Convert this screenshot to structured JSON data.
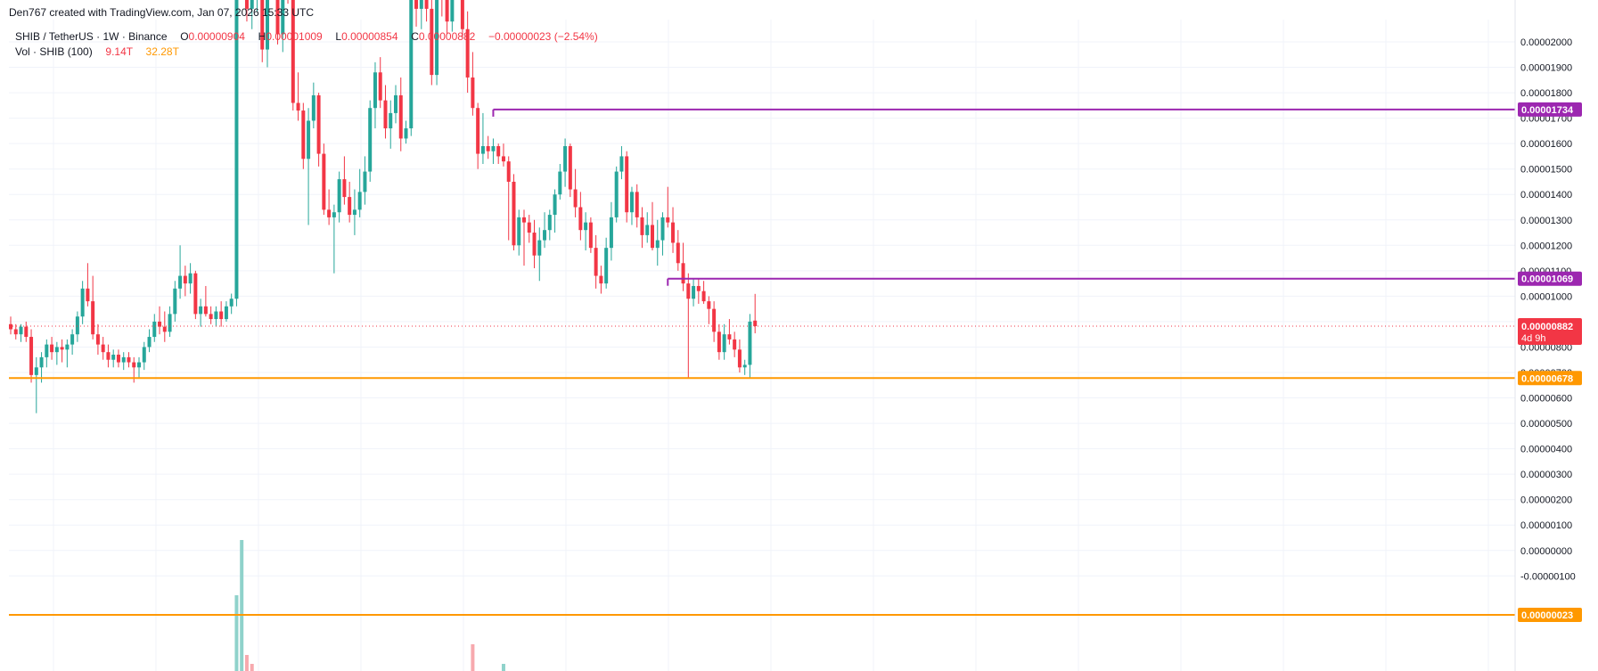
{
  "header": {
    "credit": "Den767 created with TradingView.com, Jan 07, 2026 15:33 UTC",
    "symbol_line": "SHIB / TetherUS · 1W · Binance",
    "o_label": "O",
    "o_value": "0.00000904",
    "h_label": "H",
    "h_value": "0.00001009",
    "l_label": "L",
    "l_value": "0.00000854",
    "c_label": "C",
    "c_value": "0.00000882",
    "change": "−0.00000023 (−2.54%)",
    "vol_label": "Vol · SHIB (100)",
    "vol_value_1": "9.14T",
    "vol_value_2": "32.28T"
  },
  "colors": {
    "up": "#26a69a",
    "down": "#f23645",
    "up_vol": "#8fd2cb",
    "down_vol": "#f7a9ae",
    "level_purple": "#9c27b0",
    "level_orange": "#ff9800",
    "grid": "#f0f3fa"
  },
  "chart_data": {
    "type": "candlestick",
    "title": "SHIB / TetherUS · 1W · Binance",
    "y_axis_labels": [
      "0.00002000",
      "0.00001900",
      "0.00001800",
      "0.00001700",
      "0.00001600",
      "0.00001500",
      "0.00001400",
      "0.00001300",
      "0.00001200",
      "0.00001100",
      "0.00001000",
      "0.00000900",
      "0.00000800",
      "0.00000700",
      "0.00000600",
      "0.00000500",
      "0.00000400",
      "0.00000300",
      "0.00000200",
      "0.00000100",
      "0.00000000",
      "-0.00000100"
    ],
    "y_axis_values": [
      2e-05,
      1.9e-05,
      1.8e-05,
      1.7e-05,
      1.6e-05,
      1.5e-05,
      1.4e-05,
      1.3e-05,
      1.2e-05,
      1.1e-05,
      1e-05,
      9e-06,
      8e-06,
      7e-06,
      6e-06,
      5e-06,
      4e-06,
      3e-06,
      2e-06,
      1e-06,
      0,
      -1e-06
    ],
    "ylim": [
      -1.2e-06,
      2.14e-05
    ],
    "grid": true,
    "levels": [
      {
        "label": "0.00001734",
        "value": 1.734e-05,
        "color": "purple",
        "start_index": 94
      },
      {
        "label": "0.00001069",
        "value": 1.069e-05,
        "color": "purple",
        "start_index": 128
      },
      {
        "label": "0.00000678",
        "value": 6.78e-06,
        "color": "orange",
        "start_index": 0
      },
      {
        "label": "0.00000023",
        "value": 2.3e-07,
        "color": "orange",
        "start_index": 0
      }
    ],
    "last_price": {
      "label": "0.00000882",
      "countdown": "4d 9h",
      "value": 8.82e-06
    },
    "candles_ohlc": [
      [
        8.9,
        9.2,
        8.5,
        8.7
      ],
      [
        8.7,
        8.9,
        8.3,
        8.5
      ],
      [
        8.5,
        8.9,
        8.2,
        8.8
      ],
      [
        8.8,
        9.0,
        8.2,
        8.4
      ],
      [
        8.4,
        8.7,
        6.6,
        6.9
      ],
      [
        6.9,
        7.6,
        5.4,
        7.2
      ],
      [
        7.2,
        7.8,
        6.6,
        7.6
      ],
      [
        7.6,
        8.3,
        7.2,
        8.1
      ],
      [
        8.1,
        8.4,
        7.5,
        7.8
      ],
      [
        7.8,
        8.2,
        7.3,
        8.0
      ],
      [
        8.0,
        8.3,
        7.4,
        7.9
      ],
      [
        7.9,
        8.3,
        7.2,
        8.1
      ],
      [
        8.1,
        8.7,
        7.7,
        8.5
      ],
      [
        8.5,
        9.4,
        8.2,
        9.2
      ],
      [
        9.2,
        10.6,
        8.9,
        10.3
      ],
      [
        10.3,
        11.3,
        9.6,
        9.8
      ],
      [
        9.8,
        10.8,
        8.3,
        8.5
      ],
      [
        8.5,
        8.9,
        7.7,
        8.1
      ],
      [
        8.1,
        8.4,
        7.5,
        7.8
      ],
      [
        7.8,
        8.1,
        7.2,
        7.5
      ],
      [
        7.5,
        7.9,
        7.2,
        7.7
      ],
      [
        7.7,
        7.9,
        7.2,
        7.4
      ],
      [
        7.4,
        7.8,
        7.1,
        7.6
      ],
      [
        7.6,
        7.8,
        7.2,
        7.4
      ],
      [
        7.4,
        7.6,
        6.6,
        7.2
      ],
      [
        7.2,
        7.6,
        6.8,
        7.4
      ],
      [
        7.4,
        8.2,
        7.1,
        8.0
      ],
      [
        8.0,
        8.7,
        7.8,
        8.4
      ],
      [
        8.4,
        9.3,
        8.2,
        9.0
      ],
      [
        9.0,
        9.6,
        8.5,
        8.8
      ],
      [
        8.8,
        9.4,
        8.2,
        8.6
      ],
      [
        8.6,
        9.6,
        8.4,
        9.3
      ],
      [
        9.3,
        10.6,
        9.0,
        10.3
      ],
      [
        10.3,
        12.0,
        9.9,
        10.8
      ],
      [
        10.8,
        11.2,
        10.0,
        10.5
      ],
      [
        10.5,
        11.3,
        10.1,
        10.9
      ],
      [
        10.9,
        11.0,
        9.1,
        9.3
      ],
      [
        9.3,
        9.9,
        8.8,
        9.6
      ],
      [
        9.6,
        10.4,
        9.2,
        9.3
      ],
      [
        9.3,
        9.6,
        8.9,
        9.1
      ],
      [
        9.1,
        9.6,
        8.8,
        9.4
      ],
      [
        9.4,
        9.8,
        8.8,
        9.1
      ],
      [
        9.1,
        9.8,
        9.0,
        9.6
      ],
      [
        9.6,
        10.1,
        9.3,
        9.9
      ],
      [
        9.9,
        26.0,
        9.6,
        25.0
      ],
      [
        25.0,
        27.0,
        22.0,
        24.5
      ],
      [
        24.5,
        25.6,
        20.8,
        21.3
      ],
      [
        21.3,
        23.0,
        20.5,
        22.1
      ],
      [
        22.1,
        23.5,
        21.2,
        22.7
      ],
      [
        22.7,
        23.2,
        19.2,
        19.7
      ],
      [
        19.7,
        23.8,
        19.0,
        23.3
      ],
      [
        23.3,
        25.0,
        22.5,
        24.4
      ],
      [
        24.4,
        24.6,
        19.9,
        20.3
      ],
      [
        20.3,
        23.6,
        19.6,
        23.1
      ],
      [
        23.1,
        25.6,
        21.5,
        22.0
      ],
      [
        22.0,
        22.6,
        17.3,
        17.6
      ],
      [
        17.6,
        18.8,
        16.9,
        17.3
      ],
      [
        17.3,
        17.6,
        15.0,
        15.4
      ],
      [
        15.4,
        17.4,
        12.8,
        16.9
      ],
      [
        16.9,
        18.4,
        16.6,
        17.9
      ],
      [
        17.9,
        18.0,
        15.1,
        15.6
      ],
      [
        15.6,
        16.0,
        13.2,
        13.4
      ],
      [
        13.4,
        14.2,
        12.8,
        13.1
      ],
      [
        13.1,
        13.6,
        10.9,
        13.3
      ],
      [
        13.3,
        14.9,
        12.9,
        14.6
      ],
      [
        14.6,
        15.5,
        13.6,
        13.9
      ],
      [
        13.9,
        14.5,
        12.9,
        13.2
      ],
      [
        13.2,
        14.2,
        12.4,
        13.4
      ],
      [
        13.4,
        15.0,
        13.1,
        14.1
      ],
      [
        14.1,
        15.5,
        13.6,
        14.9
      ],
      [
        14.9,
        17.7,
        14.5,
        17.4
      ],
      [
        17.4,
        19.2,
        16.6,
        18.8
      ],
      [
        18.8,
        19.4,
        17.4,
        17.7
      ],
      [
        17.7,
        18.3,
        16.2,
        16.6
      ],
      [
        16.6,
        17.7,
        15.8,
        17.2
      ],
      [
        17.2,
        18.3,
        16.8,
        17.9
      ],
      [
        17.9,
        18.6,
        15.7,
        16.2
      ],
      [
        16.2,
        16.9,
        16.0,
        16.6
      ],
      [
        16.6,
        22.5,
        16.3,
        22.0
      ],
      [
        22.0,
        23.0,
        20.6,
        21.3
      ],
      [
        21.3,
        23.7,
        20.5,
        23.2
      ],
      [
        23.2,
        23.8,
        20.8,
        21.3
      ],
      [
        21.3,
        22.4,
        18.3,
        18.7
      ],
      [
        18.7,
        22.7,
        18.3,
        22.3
      ],
      [
        22.3,
        23.5,
        21.0,
        21.7
      ],
      [
        21.7,
        22.5,
        20.3,
        20.8
      ],
      [
        20.8,
        23.0,
        20.4,
        22.5
      ],
      [
        22.5,
        23.1,
        21.7,
        22.1
      ],
      [
        22.1,
        22.6,
        20.2,
        20.5
      ],
      [
        20.5,
        21.2,
        18.0,
        18.6
      ],
      [
        18.6,
        19.6,
        17.1,
        17.4
      ],
      [
        17.4,
        17.6,
        15.0,
        15.6
      ],
      [
        15.6,
        17.2,
        15.2,
        15.9
      ],
      [
        15.9,
        16.3,
        15.4,
        15.7
      ],
      [
        15.7,
        16.2,
        15.2,
        15.9
      ],
      [
        15.9,
        16.0,
        15.2,
        15.5
      ],
      [
        15.5,
        16.0,
        15.1,
        15.3
      ],
      [
        15.3,
        15.5,
        12.2,
        14.5
      ],
      [
        14.5,
        14.8,
        11.8,
        12.0
      ],
      [
        12.0,
        13.4,
        11.6,
        13.1
      ],
      [
        13.1,
        13.4,
        11.2,
        12.9
      ],
      [
        12.9,
        13.2,
        12.1,
        12.5
      ],
      [
        12.5,
        13.0,
        11.1,
        11.6
      ],
      [
        11.6,
        12.7,
        10.6,
        12.2
      ],
      [
        12.2,
        13.3,
        11.9,
        12.6
      ],
      [
        12.6,
        13.4,
        12.2,
        13.2
      ],
      [
        13.2,
        14.2,
        12.5,
        14.0
      ],
      [
        14.0,
        15.2,
        13.8,
        14.9
      ],
      [
        14.9,
        16.2,
        14.3,
        15.9
      ],
      [
        15.9,
        16.0,
        13.9,
        14.2
      ],
      [
        14.2,
        15.0,
        13.1,
        13.5
      ],
      [
        13.5,
        14.1,
        12.2,
        12.6
      ],
      [
        12.6,
        13.3,
        11.8,
        12.9
      ],
      [
        12.9,
        13.1,
        11.7,
        11.9
      ],
      [
        11.9,
        12.4,
        10.3,
        10.8
      ],
      [
        10.8,
        11.2,
        10.1,
        10.5
      ],
      [
        10.5,
        12.3,
        10.3,
        11.9
      ],
      [
        11.9,
        13.7,
        11.4,
        13.1
      ],
      [
        13.1,
        15.1,
        12.9,
        14.9
      ],
      [
        14.9,
        15.9,
        14.6,
        15.5
      ],
      [
        15.5,
        15.7,
        12.9,
        13.3
      ],
      [
        13.3,
        14.3,
        12.8,
        14.1
      ],
      [
        14.1,
        14.4,
        12.7,
        13.1
      ],
      [
        13.1,
        13.5,
        11.9,
        12.4
      ],
      [
        12.4,
        13.3,
        12.1,
        12.8
      ],
      [
        12.8,
        13.7,
        11.8,
        11.9
      ],
      [
        11.9,
        13.0,
        11.2,
        12.2
      ],
      [
        12.2,
        13.3,
        11.6,
        13.1
      ],
      [
        13.1,
        14.3,
        12.7,
        12.9
      ],
      [
        12.9,
        13.5,
        11.7,
        12.1
      ],
      [
        12.1,
        12.6,
        11.0,
        11.3
      ],
      [
        11.3,
        12.1,
        10.2,
        10.5
      ],
      [
        10.5,
        10.9,
        6.8,
        9.9
      ],
      [
        9.9,
        10.7,
        9.6,
        10.4
      ],
      [
        10.4,
        10.7,
        9.7,
        10.2
      ],
      [
        10.2,
        10.6,
        9.7,
        9.8
      ],
      [
        9.8,
        10.0,
        8.9,
        9.5
      ],
      [
        9.5,
        9.8,
        8.2,
        8.6
      ],
      [
        8.6,
        8.9,
        7.5,
        7.8
      ],
      [
        7.8,
        8.9,
        7.5,
        8.5
      ],
      [
        8.5,
        9.1,
        8.1,
        8.3
      ],
      [
        8.3,
        8.6,
        7.6,
        7.9
      ],
      [
        7.9,
        8.3,
        7.0,
        7.2
      ],
      [
        7.2,
        7.5,
        6.9,
        7.3
      ],
      [
        7.3,
        9.3,
        6.8,
        9.0
      ],
      [
        9.04,
        10.09,
        8.54,
        8.82
      ]
    ],
    "volume_highlights": [
      {
        "index": 44,
        "volume": "high"
      },
      {
        "index": 45,
        "volume": "high"
      },
      {
        "index": 46,
        "volume": "medium"
      },
      {
        "index": 90,
        "volume": "medium"
      },
      {
        "index": 96,
        "volume": "low"
      }
    ]
  }
}
